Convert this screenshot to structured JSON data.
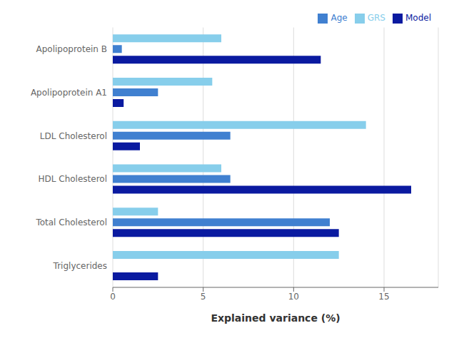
{
  "chart_data": {
    "type": "bar",
    "orientation": "horizontal",
    "categories": [
      "Apolipoprotein B",
      "Apolipoprotein A1",
      "LDL Cholesterol",
      "HDL Cholesterol",
      "Total Cholesterol",
      "Triglycerides"
    ],
    "series": [
      {
        "name": "GRS",
        "color": "#87CEEB",
        "values": [
          6.0,
          5.5,
          14.0,
          6.0,
          2.5,
          12.5
        ]
      },
      {
        "name": "Age",
        "color": "#4080D0",
        "values": [
          0.5,
          2.5,
          6.5,
          6.5,
          12.0,
          0.0
        ]
      },
      {
        "name": "Model",
        "color": "#0A1AA0",
        "values": [
          11.5,
          0.6,
          1.5,
          16.5,
          12.5,
          2.5
        ]
      }
    ],
    "xlabel": "Explained variance (%)",
    "xlim": [
      0,
      18
    ],
    "xticks": [
      0,
      5,
      10,
      15
    ],
    "grid": true,
    "legend": "upper right"
  }
}
